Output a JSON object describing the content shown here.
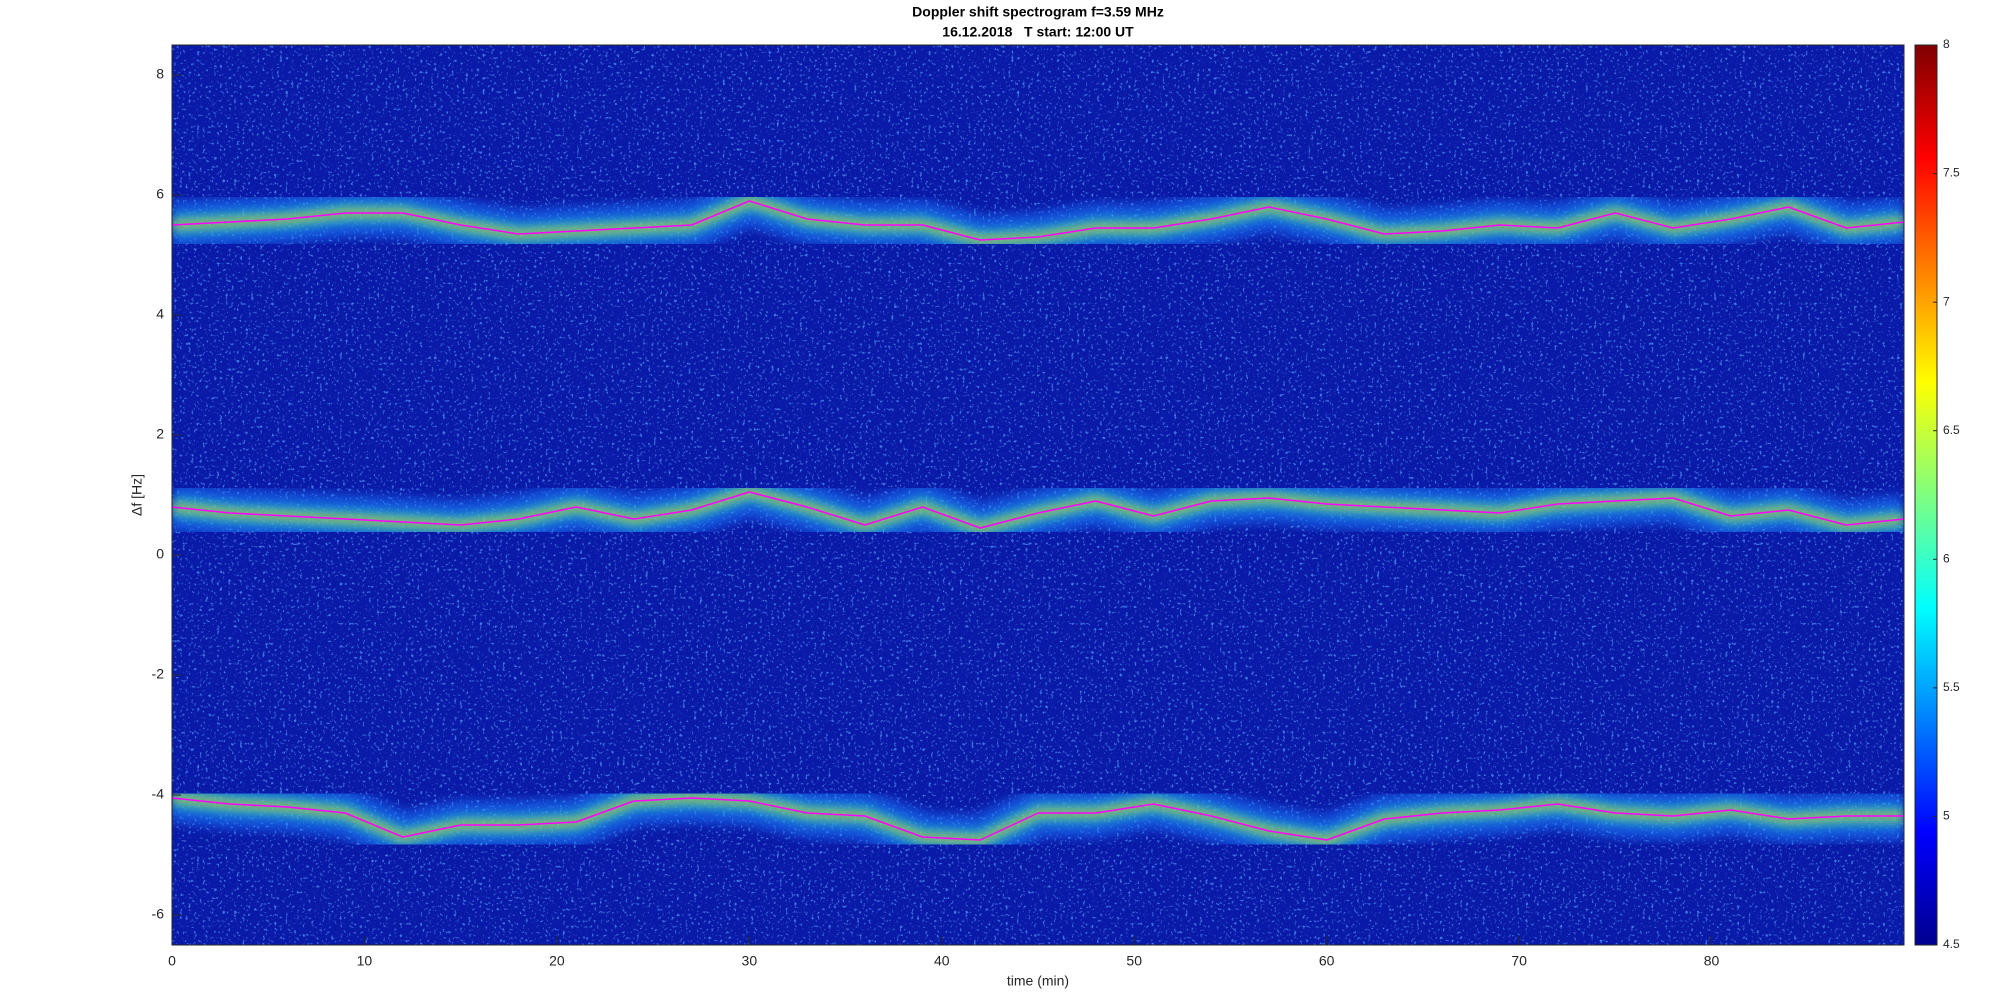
{
  "chart_data": {
    "type": "spectrogram",
    "title": "Doppler shift spectrogram f=3.59 MHz",
    "subtitle": "16.12.2018   T start: 12:00 UT",
    "xlabel": "time (min)",
    "ylabel": "Δf [Hz]",
    "xlim": [
      0,
      90
    ],
    "ylim": [
      -6.5,
      8.5
    ],
    "xticks": [
      0,
      10,
      20,
      30,
      40,
      50,
      60,
      70,
      80
    ],
    "yticks": [
      -6,
      -4,
      -2,
      0,
      2,
      4,
      6,
      8
    ],
    "x": [
      0,
      3,
      6,
      9,
      12,
      15,
      18,
      21,
      24,
      27,
      30,
      33,
      36,
      39,
      42,
      45,
      48,
      51,
      54,
      57,
      60,
      63,
      66,
      69,
      72,
      75,
      78,
      81,
      84,
      87,
      90
    ],
    "series": [
      {
        "color": "#ff00ff",
        "values": [
          5.5,
          5.55,
          5.6,
          5.7,
          5.7,
          5.5,
          5.35,
          5.4,
          5.45,
          5.5,
          5.9,
          5.6,
          5.5,
          5.5,
          5.25,
          5.3,
          5.45,
          5.45,
          5.6,
          5.8,
          5.6,
          5.35,
          5.4,
          5.5,
          5.45,
          5.7,
          5.45,
          5.6,
          5.8,
          5.45,
          5.55
        ]
      },
      {
        "color": "#ff00ff",
        "values": [
          0.8,
          0.7,
          0.65,
          0.6,
          0.55,
          0.5,
          0.6,
          0.8,
          0.6,
          0.75,
          1.05,
          0.8,
          0.5,
          0.8,
          0.45,
          0.7,
          0.9,
          0.65,
          0.9,
          0.95,
          0.85,
          0.8,
          0.75,
          0.7,
          0.85,
          0.9,
          0.95,
          0.65,
          0.75,
          0.5,
          0.6
        ]
      },
      {
        "color": "#ff00ff",
        "values": [
          -4.05,
          -4.15,
          -4.2,
          -4.3,
          -4.7,
          -4.5,
          -4.5,
          -4.45,
          -4.1,
          -4.05,
          -4.1,
          -4.3,
          -4.35,
          -4.7,
          -4.75,
          -4.3,
          -4.3,
          -4.15,
          -4.35,
          -4.6,
          -4.75,
          -4.4,
          -4.3,
          -4.25,
          -4.15,
          -4.3,
          -4.35,
          -4.25,
          -4.4,
          -4.35,
          -4.35
        ]
      }
    ],
    "colorbar": {
      "lim": [
        4.5,
        8
      ],
      "ticks": [
        4.5,
        5,
        5.5,
        6,
        6.5,
        7,
        7.5,
        8
      ],
      "colormap": "jet"
    }
  }
}
